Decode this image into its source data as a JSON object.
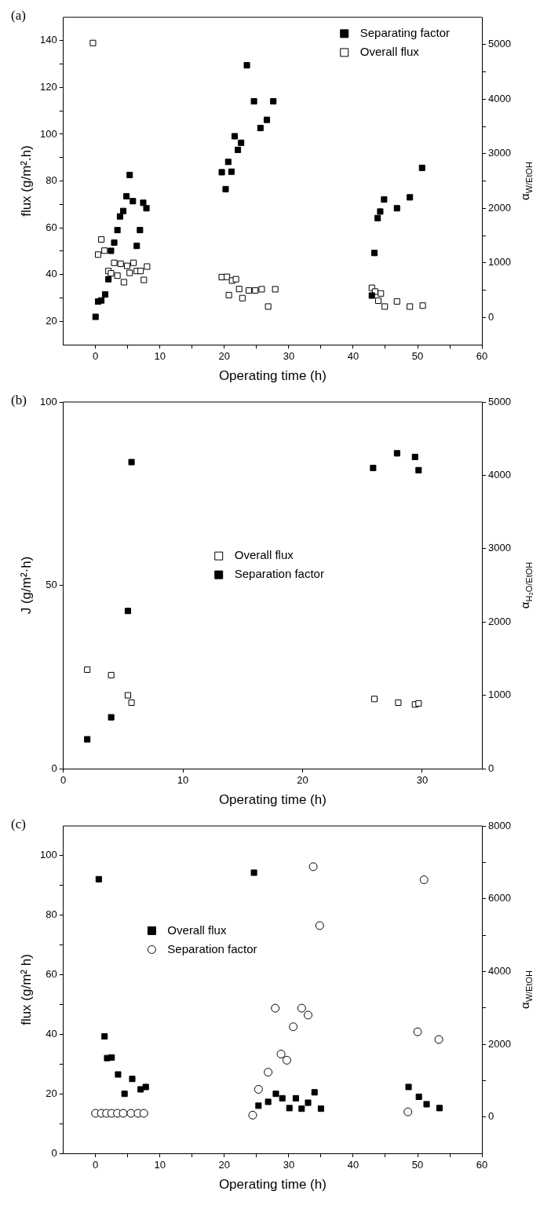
{
  "chart_data": [
    {
      "type": "scatter",
      "title": "(a)",
      "xlabel": "Operating time (h)",
      "ylabel": "flux (g/m².h)",
      "y2label": "α$_{W/EtOH}$",
      "legend": "top right",
      "grid": false,
      "xlim": [
        -5,
        60
      ],
      "xticks": [
        0,
        {
          "value": 5,
          "label": null
        },
        10,
        {
          "value": 15,
          "label": null
        },
        20,
        {
          "value": 25,
          "label": null
        },
        30,
        {
          "value": 35,
          "label": null
        },
        40,
        {
          "value": 45,
          "label": null
        },
        50,
        {
          "value": 55,
          "label": null
        },
        60
      ],
      "ylim": [
        10,
        150
      ],
      "yticks": [
        20,
        {
          "value": 30,
          "label": null
        },
        40,
        {
          "value": 50,
          "label": null
        },
        60,
        {
          "value": 70,
          "label": null
        },
        80,
        {
          "value": 90,
          "label": null
        },
        100,
        {
          "value": 110,
          "label": null
        },
        120,
        {
          "value": 130,
          "label": null
        },
        140
      ],
      "y2lim": [
        -500,
        5500
      ],
      "y2ticks": [
        0,
        {
          "value": 500,
          "label": null
        },
        1000,
        {
          "value": 1500,
          "label": null
        },
        2000,
        {
          "value": 2500,
          "label": null
        },
        3000,
        {
          "value": 3500,
          "label": null
        },
        4000,
        {
          "value": 4500,
          "label": null
        },
        5000
      ],
      "series": [
        {
          "name": "Separating factor",
          "color": "#000000",
          "marker": "square",
          "axis": "y2",
          "x": [
            0,
            0.4,
            0.9,
            1.5,
            2.0,
            2.4,
            2.9,
            3.4,
            3.8,
            4.3,
            4.8,
            5.3,
            5.8,
            6.4,
            6.9,
            7.4,
            7.9,
            19.6,
            20.2,
            20.6,
            21.1,
            21.6,
            22.1,
            22.6,
            23.5,
            24.6,
            25.6,
            26.6,
            27.6,
            42.9,
            43.3,
            43.8,
            44.2,
            44.8,
            46.8,
            48.8,
            50.7
          ],
          "values": [
            10,
            290,
            310,
            420,
            700,
            1220,
            1370,
            1600,
            1850,
            1950,
            2220,
            2610,
            2130,
            1310,
            1600,
            2100,
            2000,
            2660,
            2350,
            2850,
            2670,
            3320,
            3070,
            3200,
            4620,
            3960,
            3470,
            3620,
            3960,
            400,
            1180,
            1820,
            1940,
            2160,
            2000,
            2200,
            2740
          ]
        },
        {
          "name": "Overall flux",
          "color": "#ffffff",
          "marker": "square",
          "x": [
            -0.4,
            0.4,
            0.9,
            1.4,
            2.0,
            2.4,
            2.9,
            3.4,
            3.9,
            4.4,
            4.9,
            5.3,
            5.9,
            6.4,
            7.0,
            7.5,
            8.0,
            19.6,
            20.4,
            20.7,
            21.2,
            21.8,
            22.3,
            22.8,
            23.8,
            24.8,
            25.8,
            26.8,
            27.9,
            42.9,
            43.4,
            43.9,
            44.3,
            44.9,
            46.8,
            48.8,
            50.8
          ],
          "values": [
            139,
            48.5,
            55,
            50.2,
            41.5,
            40.5,
            45,
            39.5,
            44.6,
            36.7,
            43.7,
            40.7,
            45,
            41.5,
            41.5,
            37.7,
            43.4,
            38.9,
            39,
            31.2,
            37.4,
            38,
            33.8,
            29.9,
            33.2,
            33.2,
            33.7,
            26.3,
            33.7,
            34.3,
            32.7,
            28.8,
            31.9,
            26.3,
            28.5,
            26.3,
            26.7
          ]
        }
      ]
    },
    {
      "type": "scatter",
      "title": "(b)",
      "xlabel": "Operating time (h)",
      "ylabel": "J (g/m²·h)",
      "y2label": "α$_{H₂O/EtOH}$",
      "legend": "center",
      "grid": false,
      "xlim": [
        0,
        35
      ],
      "xticks": [
        0,
        10,
        20,
        30
      ],
      "ylim": [
        0,
        100
      ],
      "yticks": [
        0,
        50,
        100
      ],
      "y2lim": [
        0,
        5000
      ],
      "y2ticks": [
        0,
        1000,
        2000,
        3000,
        4000,
        5000
      ],
      "series": [
        {
          "name": "Overall flux",
          "color": "#ffffff",
          "marker": "square",
          "x": [
            2,
            4,
            5.4,
            5.7,
            26,
            28,
            29.4,
            29.7
          ],
          "values": [
            27,
            25.5,
            20,
            18,
            19,
            18,
            17.5,
            17.8
          ]
        },
        {
          "name": "Separation factor",
          "color": "#000000",
          "marker": "square",
          "axis": "y2",
          "x": [
            2,
            4,
            5.4,
            5.7,
            25.9,
            27.9,
            29.4,
            29.7
          ],
          "values": [
            400,
            700,
            2150,
            4180,
            4100,
            4300,
            4250,
            4070
          ]
        }
      ]
    },
    {
      "type": "scatter",
      "title": "(c)",
      "xlabel": "Operating time (h)",
      "ylabel": "flux (g/m² h)",
      "y2label": "α$_{W/EtOH}$",
      "legend": "left",
      "grid": false,
      "xlim": [
        -5,
        60
      ],
      "xticks": [
        0,
        {
          "value": 5,
          "label": null
        },
        10,
        {
          "value": 15,
          "label": null
        },
        20,
        {
          "value": 25,
          "label": null
        },
        30,
        {
          "value": 35,
          "label": null
        },
        40,
        {
          "value": 45,
          "label": null
        },
        50,
        {
          "value": 55,
          "label": null
        },
        60
      ],
      "ylim": [
        0,
        110
      ],
      "yticks": [
        0,
        {
          "value": 10,
          "label": null
        },
        20,
        {
          "value": 30,
          "label": null
        },
        40,
        {
          "value": 50,
          "label": null
        },
        60,
        {
          "value": 70,
          "label": null
        },
        80,
        {
          "value": 90,
          "label": null
        },
        100
      ],
      "y2lim": [
        -1000,
        8000
      ],
      "y2ticks": [
        0,
        {
          "value": 1000,
          "label": null
        },
        2000,
        {
          "value": 3000,
          "label": null
        },
        4000,
        {
          "value": 5000,
          "label": null
        },
        6000,
        {
          "value": 7000,
          "label": null
        },
        8000
      ],
      "series": [
        {
          "name": "Overall flux",
          "color": "#000000",
          "marker": "square",
          "x": [
            0.5,
            1.4,
            1.8,
            2.5,
            3.5,
            4.5,
            5.7,
            7,
            7.8,
            24.6,
            25.3,
            26.8,
            28,
            29,
            30.1,
            31.1,
            32,
            33,
            34,
            35,
            48.6,
            50.2,
            51.4,
            53.4
          ],
          "values": [
            92.1,
            39.3,
            32,
            32.2,
            26.5,
            20,
            25,
            21.5,
            22.3,
            94.3,
            16,
            17.3,
            20,
            18.5,
            15.2,
            18.5,
            15,
            17,
            20.5,
            15,
            22.3,
            19,
            16.5,
            15.2
          ]
        },
        {
          "name": "Separation factor",
          "color": "#ffffff",
          "marker": "circle",
          "axis": "y2",
          "x": [
            0,
            0.9,
            1.7,
            2.5,
            3.4,
            4.3,
            5.5,
            6.6,
            7.5,
            24.4,
            25.3,
            26.8,
            27.9,
            28.8,
            29.7,
            30.7,
            32.0,
            33.0,
            33.8,
            34.8,
            48.5,
            50.0,
            51.0,
            53.3
          ],
          "values": [
            100,
            100,
            100,
            100,
            100,
            100,
            100,
            100,
            100,
            50,
            760,
            1230,
            2990,
            1730,
            1560,
            2480,
            2990,
            2800,
            6880,
            5260,
            140,
            2340,
            6520,
            2130
          ]
        }
      ]
    }
  ]
}
